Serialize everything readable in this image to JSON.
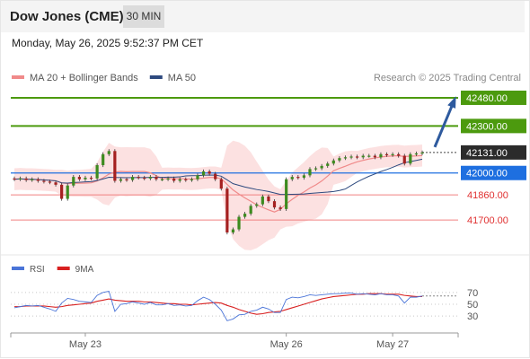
{
  "header": {
    "title": "Dow Jones (CME)",
    "timeframe": "30 MIN"
  },
  "timestamp": "Monday, May 26, 2025 9:52:37 PM CET",
  "chart_data": [
    {
      "type": "line",
      "subtype": "candlestick",
      "legend": [
        {
          "name": "MA 20 + Bollinger Bands",
          "color": "#f08a8a"
        },
        {
          "name": "MA 50",
          "color": "#2e4a7f"
        }
      ],
      "watermark": "Research © 2025 Trading Central",
      "price_levels": [
        {
          "label": "42480.00",
          "value": 42480,
          "color": "#4c9a0e",
          "kind": "resistance"
        },
        {
          "label": "42300.00",
          "value": 42300,
          "color": "#4c9a0e",
          "kind": "resistance"
        },
        {
          "label": "42131.00",
          "value": 42131,
          "color": "#222222",
          "kind": "last"
        },
        {
          "label": "42000.00",
          "value": 42000,
          "color": "#1e6fe0",
          "kind": "pivot"
        },
        {
          "label": "41860.00",
          "value": 41860,
          "color": "#e03030",
          "kind": "support"
        },
        {
          "label": "41700.00",
          "value": 41700,
          "color": "#e03030",
          "kind": "support"
        }
      ],
      "x_tick_labels": [
        "May 23",
        "May 26",
        "May 27"
      ],
      "ylim": [
        41500,
        42560
      ],
      "closes": [
        41960,
        41965,
        41955,
        41960,
        41950,
        41945,
        41940,
        41925,
        41835,
        41920,
        41975,
        41960,
        41970,
        41965,
        42050,
        42120,
        42140,
        41950,
        41960,
        41955,
        41975,
        41970,
        41965,
        41975,
        41960,
        41960,
        41965,
        41950,
        41960,
        41955,
        41960,
        41985,
        42010,
        41995,
        41960,
        41900,
        41620,
        41640,
        41720,
        41740,
        41790,
        41800,
        41850,
        41820,
        41780,
        41770,
        41960,
        41975,
        41970,
        41985,
        42025,
        42030,
        42045,
        42060,
        42080,
        42095,
        42100,
        42105,
        42100,
        42110,
        42110,
        42100,
        42120,
        42115,
        42120,
        42110,
        42060,
        42120,
        42125,
        42131
      ]
    },
    {
      "type": "line",
      "legend": [
        {
          "name": "RSI",
          "color": "#4a74d8"
        },
        {
          "name": "9MA",
          "color": "#d82020"
        }
      ],
      "y_tick_labels": [
        "70",
        "50",
        "30"
      ],
      "ylim": [
        15,
        85
      ],
      "rsi": [
        44,
        46,
        48,
        47,
        48,
        45,
        42,
        38,
        52,
        60,
        58,
        55,
        54,
        53,
        65,
        70,
        72,
        38,
        50,
        51,
        54,
        52,
        50,
        53,
        49,
        49,
        51,
        48,
        49,
        47,
        48,
        56,
        62,
        58,
        50,
        40,
        22,
        25,
        32,
        33,
        38,
        40,
        45,
        42,
        36,
        36,
        58,
        62,
        61,
        63,
        66,
        65,
        66,
        67,
        68,
        68,
        69,
        69,
        67,
        68,
        67,
        66,
        68,
        66,
        66,
        64,
        52,
        62,
        62,
        64
      ],
      "ma9": [
        46,
        46,
        47,
        47,
        47,
        47,
        46,
        45,
        46,
        48,
        49,
        50,
        51,
        52,
        55,
        57,
        59,
        57,
        56,
        55,
        55,
        55,
        54,
        54,
        53,
        52,
        51,
        51,
        50,
        50,
        49,
        50,
        51,
        52,
        53,
        52,
        48,
        45,
        41,
        38,
        35,
        33,
        34,
        36,
        37,
        38,
        41,
        44,
        47,
        50,
        53,
        56,
        59,
        61,
        63,
        64,
        65,
        66,
        67,
        67,
        68,
        68,
        68,
        67,
        67,
        67,
        65,
        64,
        63,
        63
      ]
    }
  ]
}
